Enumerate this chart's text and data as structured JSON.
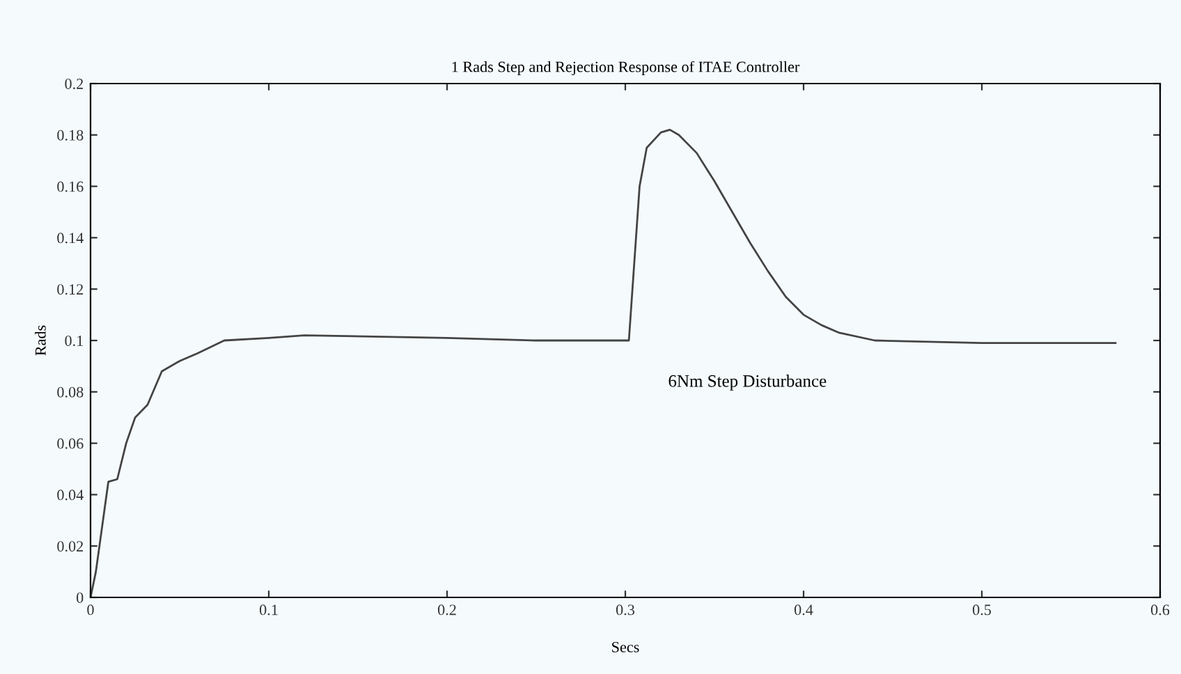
{
  "chart_data": {
    "type": "line",
    "title": "1 Rads Step and Rejection Response of ITAE Controller",
    "xlabel": "Secs",
    "ylabel": "Rads",
    "annotations": [
      "6Nm Step Disturbance"
    ],
    "x": [
      0,
      0.003,
      0.007,
      0.01,
      0.015,
      0.02,
      0.025,
      0.032,
      0.04,
      0.05,
      0.06,
      0.075,
      0.1,
      0.12,
      0.2,
      0.25,
      0.302,
      0.305,
      0.308,
      0.312,
      0.32,
      0.325,
      0.33,
      0.34,
      0.35,
      0.36,
      0.37,
      0.38,
      0.39,
      0.4,
      0.41,
      0.42,
      0.44,
      0.5,
      0.575
    ],
    "series": [
      {
        "color": "#444444",
        "values": [
          0,
          0.01,
          0.03,
          0.045,
          0.046,
          0.06,
          0.07,
          0.075,
          0.088,
          0.092,
          0.095,
          0.1,
          0.101,
          0.102,
          0.101,
          0.1,
          0.1,
          0.13,
          0.16,
          0.175,
          0.181,
          0.182,
          0.18,
          0.173,
          0.162,
          0.15,
          0.138,
          0.127,
          0.117,
          0.11,
          0.106,
          0.103,
          0.1,
          0.099,
          0.099
        ]
      }
    ],
    "xlim": [
      0,
      0.6
    ],
    "ylim": [
      0,
      0.2
    ],
    "xticks": [
      0,
      0.1,
      0.2,
      0.3,
      0.4,
      0.5,
      0.6
    ],
    "yticks": [
      0,
      0.02,
      0.04,
      0.06,
      0.08,
      0.1,
      0.12,
      0.14,
      0.16,
      0.18,
      0.2
    ],
    "grid": false,
    "legend": false,
    "marker": "none",
    "line_style": "solid"
  }
}
